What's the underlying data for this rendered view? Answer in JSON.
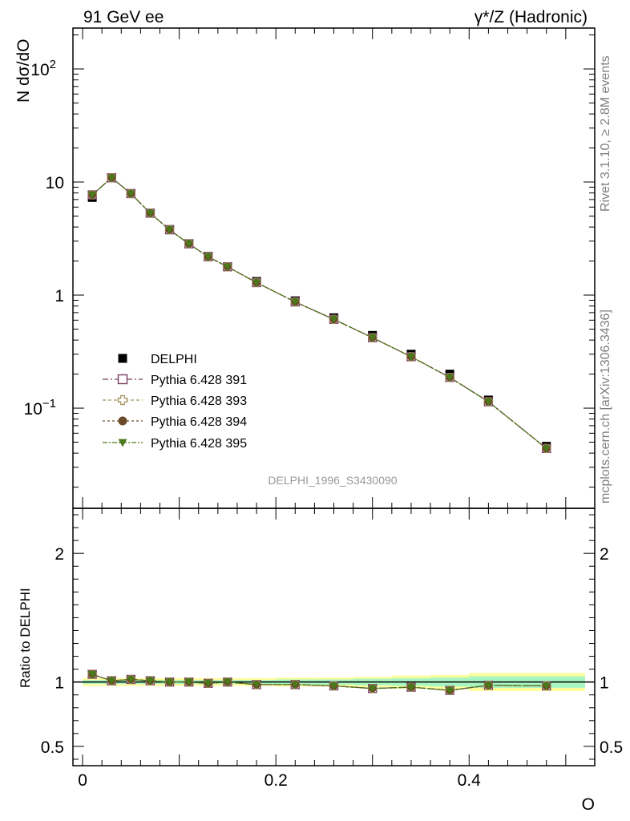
{
  "header": {
    "left_title": "91 GeV ee",
    "right_title": "γ*/Z (Hadronic)"
  },
  "side": {
    "rivet": "Rivet 3.1.10, ≥ 2.8M events",
    "mcplots": "mcplots.cern.ch [arXiv:1306.3436]"
  },
  "annotation": "DELPHI_1996_S3430090",
  "chart_data": [
    {
      "type": "scatter",
      "ylabel": "N dσ/dO",
      "yscale": "log",
      "ylim": [
        0.013,
        230
      ],
      "xlim": [
        -0.01,
        0.53
      ],
      "yticks": [
        "10^-1",
        "1",
        "10",
        "10^2"
      ],
      "x": [
        0.01,
        0.03,
        0.05,
        0.07,
        0.09,
        0.11,
        0.13,
        0.15,
        0.18,
        0.22,
        0.26,
        0.3,
        0.34,
        0.38,
        0.42,
        0.48
      ],
      "series": [
        {
          "name": "DELPHI",
          "color": "#000000",
          "marker": "square",
          "values": [
            7.3,
            10.9,
            7.9,
            5.3,
            3.8,
            2.85,
            2.2,
            1.78,
            1.32,
            0.89,
            0.63,
            0.44,
            0.3,
            0.2,
            0.118,
            0.046
          ]
        },
        {
          "name": "Pythia 6.428 391",
          "color": "#7b4060",
          "marker": "open-square",
          "values": [
            7.7,
            10.9,
            7.9,
            5.3,
            3.78,
            2.84,
            2.18,
            1.78,
            1.29,
            0.87,
            0.61,
            0.42,
            0.285,
            0.187,
            0.114,
            0.044
          ]
        },
        {
          "name": "Pythia 6.428 393",
          "color": "#a0925e",
          "marker": "open-cross",
          "values": [
            7.7,
            10.9,
            7.9,
            5.3,
            3.78,
            2.84,
            2.18,
            1.78,
            1.29,
            0.87,
            0.61,
            0.42,
            0.285,
            0.187,
            0.114,
            0.044
          ]
        },
        {
          "name": "Pythia 6.428 394",
          "color": "#6b4a2a",
          "marker": "circle",
          "values": [
            7.7,
            10.9,
            7.9,
            5.3,
            3.78,
            2.84,
            2.18,
            1.78,
            1.29,
            0.87,
            0.61,
            0.42,
            0.285,
            0.187,
            0.114,
            0.044
          ]
        },
        {
          "name": "Pythia 6.428 395",
          "color": "#4a7a1a",
          "marker": "triangle-down",
          "values": [
            7.7,
            10.9,
            7.9,
            5.3,
            3.78,
            2.84,
            2.18,
            1.78,
            1.29,
            0.87,
            0.61,
            0.42,
            0.285,
            0.187,
            0.114,
            0.044
          ]
        }
      ]
    },
    {
      "type": "line",
      "ylabel": "Ratio to DELPHI",
      "xlabel": "O",
      "ylim": [
        0.35,
        2.35
      ],
      "xlim": [
        -0.01,
        0.53
      ],
      "xticks": [
        "0",
        "0.2",
        "0.4"
      ],
      "yticks": [
        "0.5",
        "1",
        "2"
      ],
      "x": [
        0.01,
        0.03,
        0.05,
        0.07,
        0.09,
        0.11,
        0.13,
        0.15,
        0.18,
        0.22,
        0.26,
        0.3,
        0.34,
        0.38,
        0.42,
        0.48
      ],
      "band_inner": [
        0.015,
        0.015,
        0.015,
        0.015,
        0.015,
        0.015,
        0.015,
        0.015,
        0.015,
        0.02,
        0.02,
        0.025,
        0.03,
        0.035,
        0.045,
        0.045
      ],
      "band_outer": [
        0.03,
        0.03,
        0.03,
        0.03,
        0.03,
        0.03,
        0.03,
        0.03,
        0.03,
        0.035,
        0.035,
        0.04,
        0.05,
        0.055,
        0.07,
        0.07
      ],
      "series": [
        {
          "name": "Pythia 6.428 391",
          "values": [
            1.06,
            1.01,
            1.02,
            1.01,
            1.0,
            1.0,
            0.99,
            1.0,
            0.98,
            0.98,
            0.97,
            0.95,
            0.96,
            0.935,
            0.975,
            0.97
          ]
        },
        {
          "name": "Pythia 6.428 393",
          "values": [
            1.06,
            1.01,
            1.02,
            1.01,
            1.0,
            1.0,
            0.99,
            1.0,
            0.98,
            0.98,
            0.97,
            0.95,
            0.96,
            0.935,
            0.975,
            0.97
          ]
        },
        {
          "name": "Pythia 6.428 394",
          "values": [
            1.06,
            1.01,
            1.02,
            1.01,
            1.0,
            1.0,
            0.99,
            1.0,
            0.98,
            0.98,
            0.97,
            0.95,
            0.96,
            0.935,
            0.975,
            0.97
          ]
        },
        {
          "name": "Pythia 6.428 395",
          "values": [
            1.06,
            1.01,
            1.02,
            1.01,
            1.0,
            1.0,
            0.99,
            1.0,
            0.98,
            0.98,
            0.97,
            0.95,
            0.96,
            0.935,
            0.975,
            0.97
          ]
        }
      ]
    }
  ]
}
